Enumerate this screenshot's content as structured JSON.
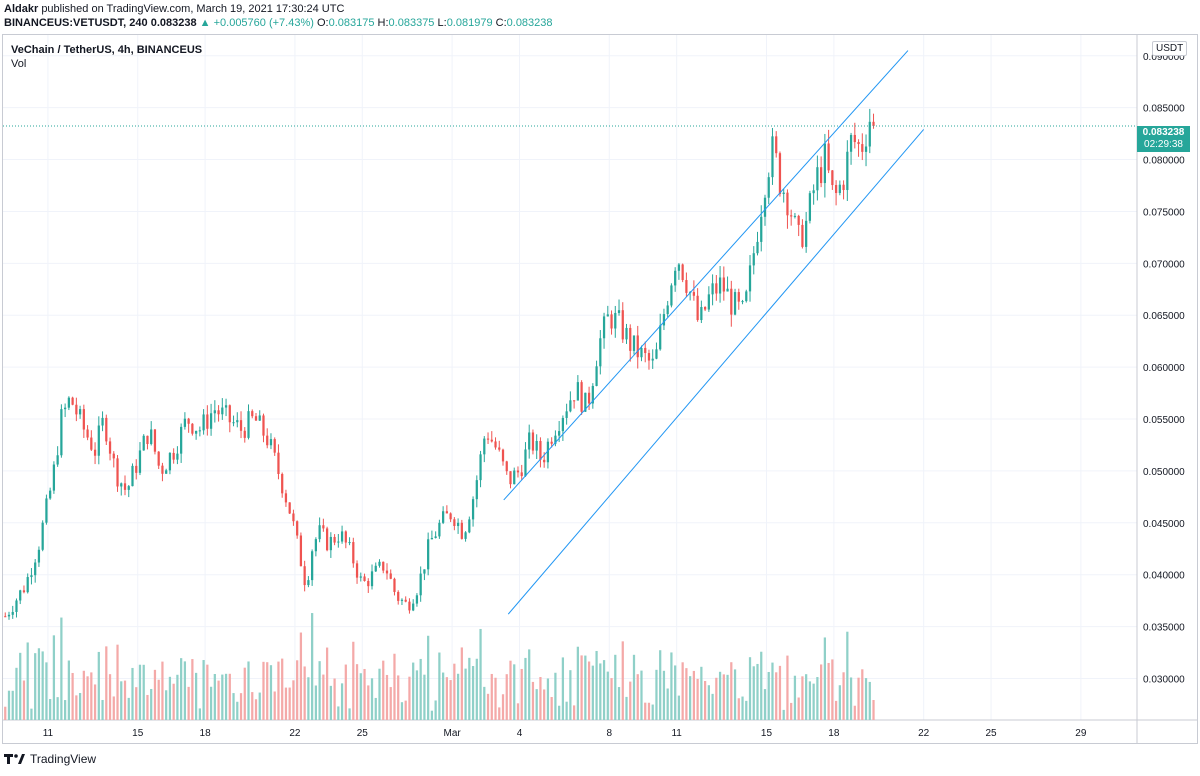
{
  "header": {
    "author": "Aldakr",
    "published_text": "published on TradingView.com, March 19, 2021 17:30:24 UTC"
  },
  "ohlc_line": {
    "symbol": "BINANCEUS:VETUSDT, 240",
    "last": "0.083238",
    "change": "▲ +0.005760 (+7.43%)",
    "o_label": "O:",
    "o": "0.083175",
    "h_label": "H:",
    "h": "0.083375",
    "l_label": "L:",
    "l": "0.081979",
    "c_label": "C:",
    "c": "0.083238"
  },
  "chart_title": "VeChain / TetherUS, 4h, BINANCEUS",
  "volume_label": "Vol",
  "currency_label": "USDT",
  "price_badge": {
    "price": "0.083238",
    "countdown": "02:29:38"
  },
  "footer": {
    "brand": "TradingView"
  },
  "colors": {
    "up": "#26a69a",
    "down": "#ef5350",
    "channel": "#2196f3",
    "grid": "#f0f3fa",
    "vol_up": "#8fd0c8",
    "vol_down": "#f4a9a8"
  },
  "chart_data": {
    "type": "candlestick",
    "title": "VeChain / TetherUS, 4h, BINANCEUS",
    "ylim": [
      0.026,
      0.092
    ],
    "y_ticks": [
      "0.090000",
      "0.085000",
      "0.080000",
      "0.075000",
      "0.070000",
      "0.065000",
      "0.060000",
      "0.055000",
      "0.050000",
      "0.045000",
      "0.040000",
      "0.035000",
      "0.030000"
    ],
    "y_tick_values": [
      0.09,
      0.085,
      0.08,
      0.075,
      0.07,
      0.065,
      0.06,
      0.055,
      0.05,
      0.045,
      0.04,
      0.035,
      0.03
    ],
    "x_ticks": [
      "11",
      "15",
      "18",
      "22",
      "25",
      "Mar",
      "4",
      "8",
      "11",
      "15",
      "18",
      "22",
      "25",
      "29"
    ],
    "x_tick_days": [
      11,
      15,
      18,
      22,
      25,
      29,
      32,
      36,
      39,
      43,
      46,
      50,
      53,
      57
    ],
    "x_domain_days": [
      9.0,
      59.5
    ],
    "last_price": 0.083238,
    "last_day": 47.9,
    "path_days": [
      9.1,
      10.0,
      10.6,
      11.2,
      11.6,
      12.0,
      12.6,
      13.1,
      13.5,
      14.0,
      14.5,
      15.0,
      15.5,
      16.0,
      16.6,
      17.2,
      17.8,
      18.4,
      19.0,
      19.6,
      20.2,
      20.8,
      21.4,
      21.8,
      22.2,
      22.5,
      22.8,
      23.1,
      23.5,
      24.0,
      24.5,
      25.0,
      25.5,
      26.0,
      26.5,
      27.0,
      27.5,
      28.0,
      28.5,
      29.0,
      29.5,
      30.0,
      30.5,
      31.0,
      31.5,
      32.0,
      32.5,
      33.0,
      33.5,
      34.0,
      34.5,
      35.0,
      35.5,
      36.0,
      36.5,
      37.0,
      37.5,
      38.0,
      38.5,
      39.0,
      39.5,
      40.0,
      40.5,
      41.0,
      41.5,
      42.0,
      42.5,
      43.0,
      43.3,
      43.6,
      44.0,
      44.4,
      44.8,
      45.2,
      45.6,
      46.0,
      46.4,
      46.8,
      47.2,
      47.6,
      47.9
    ],
    "path_close": [
      0.036,
      0.039,
      0.043,
      0.049,
      0.055,
      0.057,
      0.054,
      0.052,
      0.055,
      0.05,
      0.048,
      0.051,
      0.054,
      0.05,
      0.052,
      0.055,
      0.054,
      0.056,
      0.055,
      0.054,
      0.055,
      0.053,
      0.049,
      0.046,
      0.042,
      0.039,
      0.043,
      0.044,
      0.043,
      0.044,
      0.042,
      0.039,
      0.04,
      0.041,
      0.038,
      0.037,
      0.039,
      0.043,
      0.045,
      0.046,
      0.044,
      0.048,
      0.054,
      0.052,
      0.049,
      0.05,
      0.053,
      0.051,
      0.054,
      0.056,
      0.058,
      0.056,
      0.062,
      0.065,
      0.064,
      0.062,
      0.061,
      0.06,
      0.066,
      0.071,
      0.068,
      0.064,
      0.067,
      0.068,
      0.066,
      0.065,
      0.072,
      0.079,
      0.081,
      0.078,
      0.076,
      0.072,
      0.074,
      0.078,
      0.08,
      0.076,
      0.078,
      0.082,
      0.081,
      0.084,
      0.083238
    ],
    "channel": {
      "upper": {
        "from": [
          31.3,
          0.0472
        ],
        "to": [
          49.3,
          0.0905
        ]
      },
      "lower": {
        "from": [
          31.5,
          0.0362
        ],
        "to": [
          50.0,
          0.0829
        ]
      }
    }
  }
}
